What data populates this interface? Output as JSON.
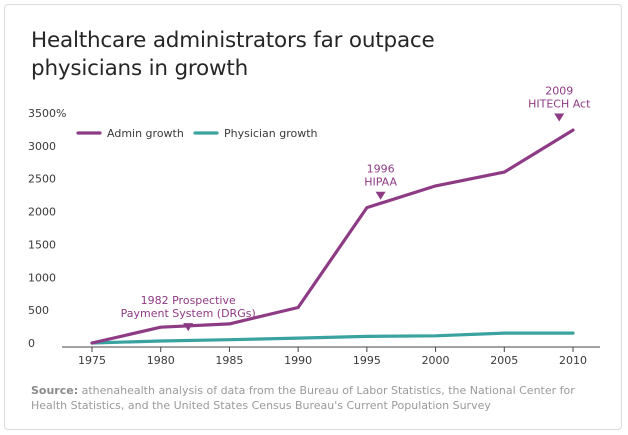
{
  "title_lines": [
    "Healthcare administrators far outpace",
    "physicians in growth"
  ],
  "chart_data": {
    "type": "line",
    "x": [
      1975,
      1980,
      1985,
      1990,
      1995,
      2000,
      2005,
      2010
    ],
    "xlim": [
      1975,
      2010
    ],
    "ylim": [
      0,
      3500
    ],
    "y_ticks": [
      0,
      500,
      1000,
      1500,
      2000,
      2500,
      3000,
      3500
    ],
    "y_tick_labels": [
      "0",
      "500",
      "1000",
      "1500",
      "2000",
      "2500",
      "3000",
      "3500%"
    ],
    "x_tick_labels": [
      "1975",
      "1980",
      "1985",
      "1990",
      "1995",
      "2000",
      "2005",
      "2010"
    ],
    "series": [
      {
        "name": "Admin growth",
        "color": "#8e3b85",
        "values": [
          0,
          240,
          290,
          540,
          2060,
          2390,
          2600,
          3240
        ]
      },
      {
        "name": "Physician growth",
        "color": "#3aa3a0",
        "values": [
          0,
          30,
          50,
          75,
          100,
          110,
          150,
          150
        ]
      }
    ],
    "legend_position": "top-left",
    "grid": false,
    "annotations": [
      {
        "lines": [
          "1982 Prospective",
          "Payment System (DRGs)"
        ],
        "x": 1982,
        "y": 180
      },
      {
        "lines": [
          "1996",
          "HIPAA"
        ],
        "x": 1996,
        "y": 2180
      },
      {
        "lines": [
          "2009",
          "HITECH Act"
        ],
        "x": 2009,
        "y": 3370
      }
    ]
  },
  "source": {
    "label": "Source:",
    "text": " athenahealth analysis of data from the Bureau of Labor Statistics, the National Center for Health Statistics, and the United States Census Bureau's Current Population Survey"
  },
  "colors": {
    "annotation": "#8e3b85",
    "axis": "#444444",
    "tick_label": "#3a3a3a",
    "legend_text": "#3a3a3a"
  }
}
